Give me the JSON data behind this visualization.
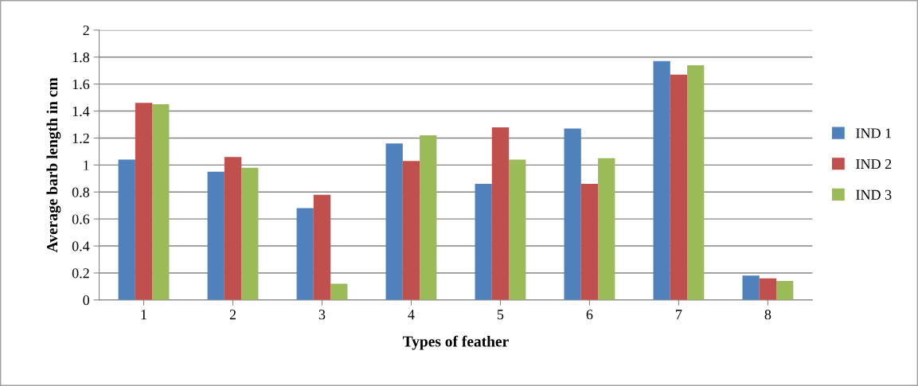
{
  "chart_data": {
    "type": "bar",
    "xlabel": "Types of feather",
    "ylabel": "Average barb length in cm",
    "categories": [
      "1",
      "2",
      "3",
      "4",
      "5",
      "6",
      "7",
      "8"
    ],
    "series": [
      {
        "name": "IND 1",
        "color": "#4f81bd",
        "values": [
          1.04,
          0.95,
          0.68,
          1.16,
          0.86,
          1.27,
          1.77,
          0.18
        ]
      },
      {
        "name": "IND 2",
        "color": "#c0504d",
        "values": [
          1.46,
          1.06,
          0.78,
          1.03,
          1.28,
          0.86,
          1.67,
          0.16
        ]
      },
      {
        "name": "IND 3",
        "color": "#9bbb59",
        "values": [
          1.45,
          0.98,
          0.12,
          1.22,
          1.04,
          1.05,
          1.74,
          0.14
        ]
      }
    ],
    "ylim": [
      0,
      2
    ],
    "yticks": [
      0,
      0.2,
      0.4,
      0.6,
      0.8,
      1,
      1.2,
      1.4,
      1.6,
      1.8,
      2
    ],
    "grid": "y",
    "legend": "right"
  }
}
